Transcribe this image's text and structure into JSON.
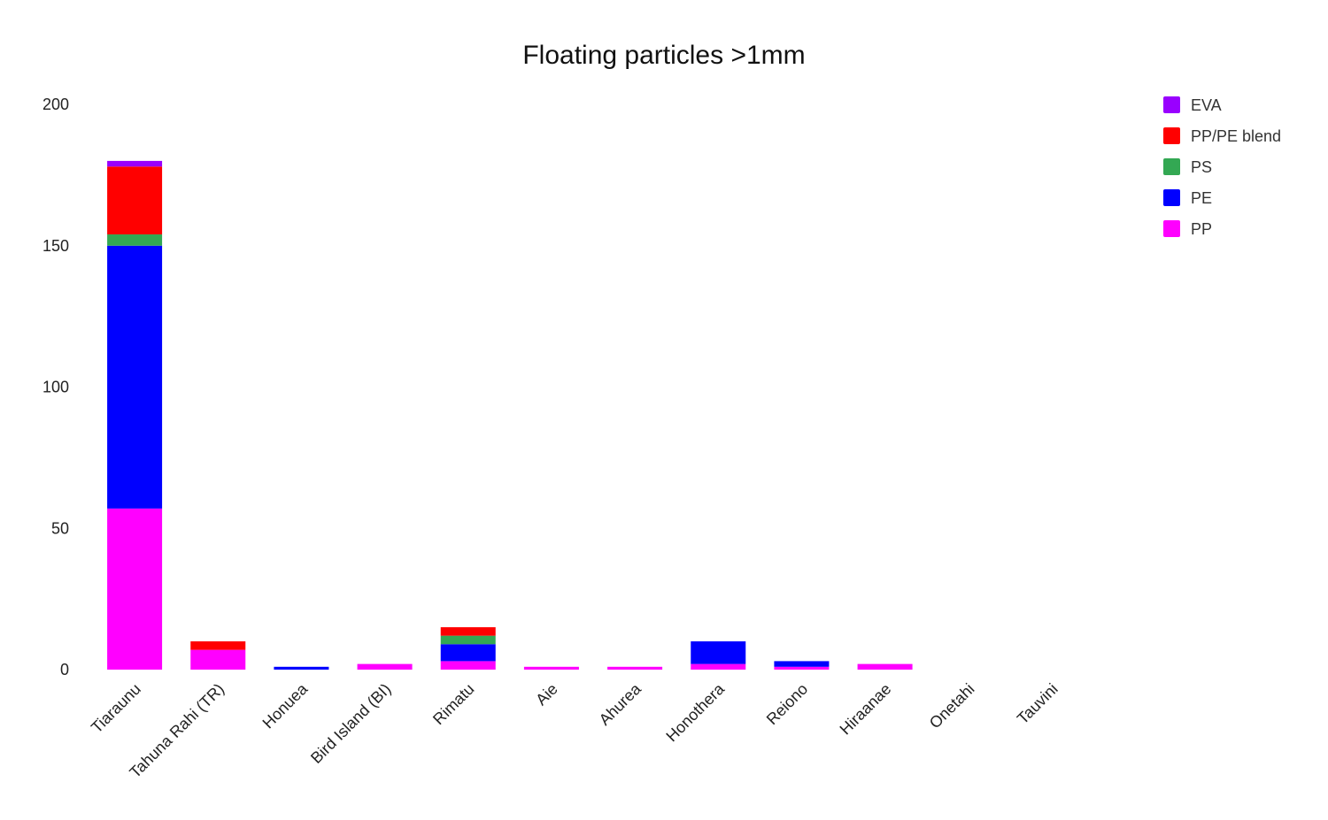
{
  "chart_data": {
    "type": "bar",
    "stacked": true,
    "title": "Floating particles >1mm",
    "xlabel": "",
    "ylabel": "",
    "ylim": [
      0,
      200
    ],
    "yticks": [
      0,
      50,
      100,
      150,
      200
    ],
    "grid": false,
    "legend_position": "top-right",
    "categories": [
      "Tiaraunu",
      "Tahuna Rahi (TR)",
      "Honuea",
      "Bird Island (BI)",
      "Rimatu",
      "Aie",
      "Ahurea",
      "Honothera",
      "Reiono",
      "Hiraanae",
      "Onetahi",
      "Tauvini"
    ],
    "series": [
      {
        "name": "PP",
        "color": "#ff00ff",
        "values": [
          57,
          7,
          0,
          2,
          3,
          1,
          1,
          2,
          1,
          2,
          0,
          0
        ]
      },
      {
        "name": "PE",
        "color": "#0000ff",
        "values": [
          93,
          0,
          1,
          0,
          6,
          0,
          0,
          8,
          2,
          0,
          0,
          0
        ]
      },
      {
        "name": "PS",
        "color": "#33a853",
        "values": [
          4,
          0,
          0,
          0,
          3,
          0,
          0,
          0,
          0,
          0,
          0,
          0
        ]
      },
      {
        "name": "PP/PE blend",
        "color": "#ff0000",
        "values": [
          24,
          3,
          0,
          0,
          3,
          0,
          0,
          0,
          0,
          0,
          0,
          0
        ]
      },
      {
        "name": "EVA",
        "color": "#9900ff",
        "values": [
          2,
          0,
          0,
          0,
          0,
          0,
          0,
          0,
          0,
          0,
          0,
          0
        ]
      }
    ],
    "legend_order": [
      "EVA",
      "PP/PE blend",
      "PS",
      "PE",
      "PP"
    ]
  }
}
